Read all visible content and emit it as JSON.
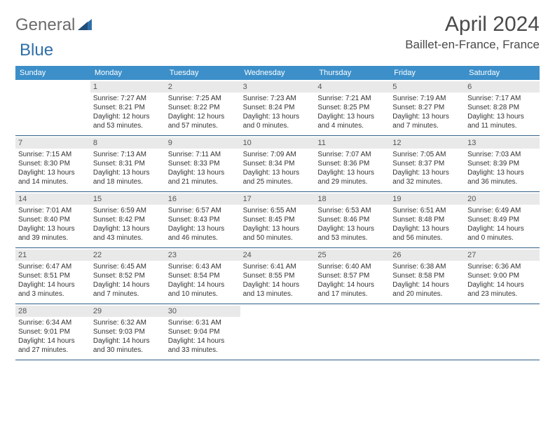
{
  "brand": {
    "name_a": "General",
    "name_b": "Blue"
  },
  "title": "April 2024",
  "location": "Baillet-en-France, France",
  "colors": {
    "header_bg": "#3c8fc9",
    "header_text": "#ffffff",
    "daynum_bg": "#e9e9e9",
    "cell_border": "#2f5f88",
    "logo_gray": "#6b6b6b",
    "logo_blue": "#2f6fa8"
  },
  "weekdays": [
    "Sunday",
    "Monday",
    "Tuesday",
    "Wednesday",
    "Thursday",
    "Friday",
    "Saturday"
  ],
  "weeks": [
    [
      null,
      {
        "n": "1",
        "sr": "7:27 AM",
        "ss": "8:21 PM",
        "dl": "12 hours and 53 minutes."
      },
      {
        "n": "2",
        "sr": "7:25 AM",
        "ss": "8:22 PM",
        "dl": "12 hours and 57 minutes."
      },
      {
        "n": "3",
        "sr": "7:23 AM",
        "ss": "8:24 PM",
        "dl": "13 hours and 0 minutes."
      },
      {
        "n": "4",
        "sr": "7:21 AM",
        "ss": "8:25 PM",
        "dl": "13 hours and 4 minutes."
      },
      {
        "n": "5",
        "sr": "7:19 AM",
        "ss": "8:27 PM",
        "dl": "13 hours and 7 minutes."
      },
      {
        "n": "6",
        "sr": "7:17 AM",
        "ss": "8:28 PM",
        "dl": "13 hours and 11 minutes."
      }
    ],
    [
      {
        "n": "7",
        "sr": "7:15 AM",
        "ss": "8:30 PM",
        "dl": "13 hours and 14 minutes."
      },
      {
        "n": "8",
        "sr": "7:13 AM",
        "ss": "8:31 PM",
        "dl": "13 hours and 18 minutes."
      },
      {
        "n": "9",
        "sr": "7:11 AM",
        "ss": "8:33 PM",
        "dl": "13 hours and 21 minutes."
      },
      {
        "n": "10",
        "sr": "7:09 AM",
        "ss": "8:34 PM",
        "dl": "13 hours and 25 minutes."
      },
      {
        "n": "11",
        "sr": "7:07 AM",
        "ss": "8:36 PM",
        "dl": "13 hours and 29 minutes."
      },
      {
        "n": "12",
        "sr": "7:05 AM",
        "ss": "8:37 PM",
        "dl": "13 hours and 32 minutes."
      },
      {
        "n": "13",
        "sr": "7:03 AM",
        "ss": "8:39 PM",
        "dl": "13 hours and 36 minutes."
      }
    ],
    [
      {
        "n": "14",
        "sr": "7:01 AM",
        "ss": "8:40 PM",
        "dl": "13 hours and 39 minutes."
      },
      {
        "n": "15",
        "sr": "6:59 AM",
        "ss": "8:42 PM",
        "dl": "13 hours and 43 minutes."
      },
      {
        "n": "16",
        "sr": "6:57 AM",
        "ss": "8:43 PM",
        "dl": "13 hours and 46 minutes."
      },
      {
        "n": "17",
        "sr": "6:55 AM",
        "ss": "8:45 PM",
        "dl": "13 hours and 50 minutes."
      },
      {
        "n": "18",
        "sr": "6:53 AM",
        "ss": "8:46 PM",
        "dl": "13 hours and 53 minutes."
      },
      {
        "n": "19",
        "sr": "6:51 AM",
        "ss": "8:48 PM",
        "dl": "13 hours and 56 minutes."
      },
      {
        "n": "20",
        "sr": "6:49 AM",
        "ss": "8:49 PM",
        "dl": "14 hours and 0 minutes."
      }
    ],
    [
      {
        "n": "21",
        "sr": "6:47 AM",
        "ss": "8:51 PM",
        "dl": "14 hours and 3 minutes."
      },
      {
        "n": "22",
        "sr": "6:45 AM",
        "ss": "8:52 PM",
        "dl": "14 hours and 7 minutes."
      },
      {
        "n": "23",
        "sr": "6:43 AM",
        "ss": "8:54 PM",
        "dl": "14 hours and 10 minutes."
      },
      {
        "n": "24",
        "sr": "6:41 AM",
        "ss": "8:55 PM",
        "dl": "14 hours and 13 minutes."
      },
      {
        "n": "25",
        "sr": "6:40 AM",
        "ss": "8:57 PM",
        "dl": "14 hours and 17 minutes."
      },
      {
        "n": "26",
        "sr": "6:38 AM",
        "ss": "8:58 PM",
        "dl": "14 hours and 20 minutes."
      },
      {
        "n": "27",
        "sr": "6:36 AM",
        "ss": "9:00 PM",
        "dl": "14 hours and 23 minutes."
      }
    ],
    [
      {
        "n": "28",
        "sr": "6:34 AM",
        "ss": "9:01 PM",
        "dl": "14 hours and 27 minutes."
      },
      {
        "n": "29",
        "sr": "6:32 AM",
        "ss": "9:03 PM",
        "dl": "14 hours and 30 minutes."
      },
      {
        "n": "30",
        "sr": "6:31 AM",
        "ss": "9:04 PM",
        "dl": "14 hours and 33 minutes."
      },
      null,
      null,
      null,
      null
    ]
  ],
  "labels": {
    "sunrise": "Sunrise:",
    "sunset": "Sunset:",
    "daylight": "Daylight:"
  }
}
